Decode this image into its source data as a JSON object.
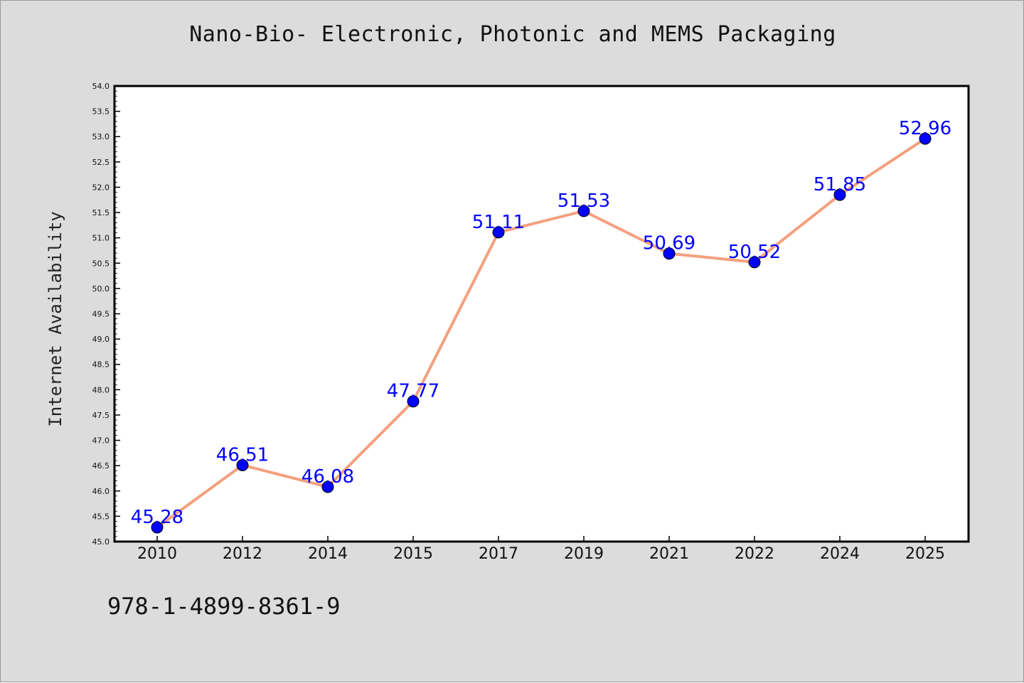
{
  "chart_data": {
    "type": "line",
    "title": "Nano-Bio- Electronic, Photonic and MEMS Packaging",
    "xlabel": "",
    "ylabel": "Internet Availability",
    "categories": [
      "2010",
      "2012",
      "2014",
      "2015",
      "2017",
      "2019",
      "2021",
      "2022",
      "2024",
      "2025"
    ],
    "series": [
      {
        "values": [
          45.28,
          46.51,
          46.08,
          47.77,
          51.11,
          51.53,
          50.69,
          50.52,
          51.85,
          52.96
        ]
      }
    ],
    "data_labels": [
      "45.28",
      "46.51",
      "46.08",
      "47.77",
      "51.11",
      "51.53",
      "50.69",
      "50.52",
      "51.85",
      "52.96"
    ],
    "ylim": [
      45.0,
      54.0
    ],
    "yticks": [
      "45.0",
      "45.5",
      "46.0",
      "46.5",
      "47.0",
      "47.5",
      "48.0",
      "48.5",
      "49.0",
      "49.5",
      "50.0",
      "50.5",
      "51.0",
      "51.5",
      "52.0",
      "52.5",
      "53.0",
      "53.5",
      "54.0"
    ],
    "grid": false,
    "legend": "none",
    "colors": {
      "line": "#f4a07e",
      "marker": "#0000ff",
      "label": "#0000ff",
      "background": "#dcdcdc",
      "plot_background": "#ffffff"
    }
  },
  "footer": {
    "isbn": "978-1-4899-8361-9"
  }
}
